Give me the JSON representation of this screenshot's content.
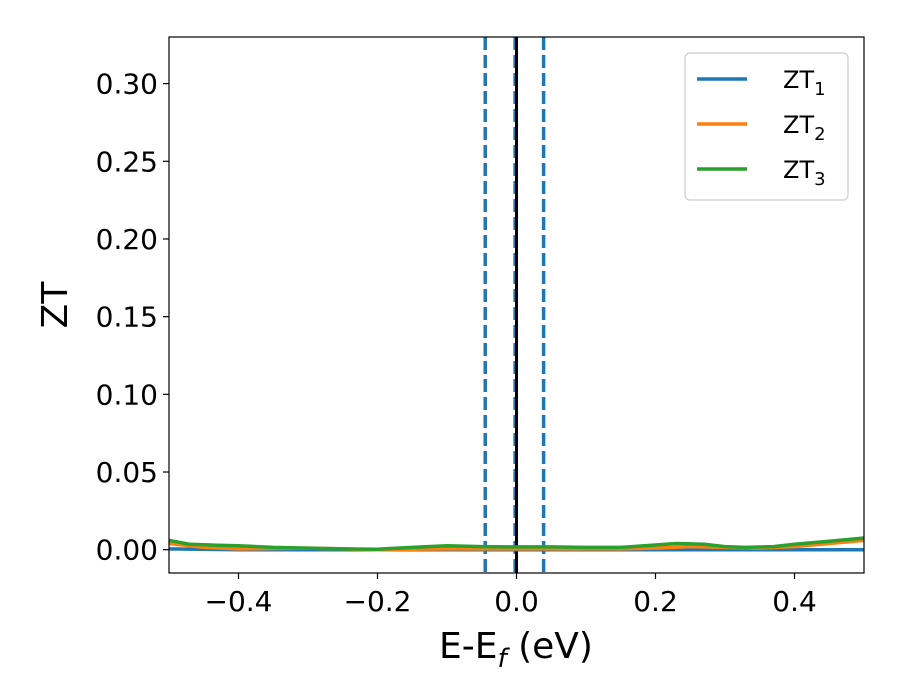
{
  "chart_data": {
    "type": "line",
    "title": "",
    "xlabel": "E-E",
    "xlabel_sub": "f",
    "xlabel_unit": " (eV)",
    "ylabel": "ZT",
    "xlim": [
      -0.5,
      0.5
    ],
    "ylim": [
      -0.015,
      0.33
    ],
    "grid": false,
    "legend_position": "top-right",
    "x_ticks": [
      {
        "value": -0.4,
        "label": "−0.4"
      },
      {
        "value": -0.2,
        "label": "−0.2"
      },
      {
        "value": 0.0,
        "label": "0.0"
      },
      {
        "value": 0.2,
        "label": "0.2"
      },
      {
        "value": 0.4,
        "label": "0.4"
      }
    ],
    "y_ticks": [
      {
        "value": 0.0,
        "label": "0.00"
      },
      {
        "value": 0.05,
        "label": "0.05"
      },
      {
        "value": 0.1,
        "label": "0.10"
      },
      {
        "value": 0.15,
        "label": "0.15"
      },
      {
        "value": 0.2,
        "label": "0.20"
      },
      {
        "value": 0.25,
        "label": "0.25"
      },
      {
        "value": 0.3,
        "label": "0.30"
      }
    ],
    "vertical_lines": [
      {
        "x": -0.045,
        "style": "dashed",
        "color": "#1f77b4"
      },
      {
        "x": -0.002,
        "style": "dashed",
        "color": "#1f77b4"
      },
      {
        "x": 0.039,
        "style": "dashed",
        "color": "#1f77b4"
      },
      {
        "x": 0.0,
        "style": "solid",
        "color": "#000000"
      }
    ],
    "series": [
      {
        "name": "ZT",
        "name_sub": "1",
        "color": "#1f77b4",
        "x": [
          -0.5,
          -0.4,
          -0.3,
          -0.2,
          -0.1,
          0.0,
          0.1,
          0.2,
          0.3,
          0.4,
          0.5
        ],
        "y": [
          0.0005,
          0.0,
          0.0,
          0.0,
          0.0,
          0.0,
          0.0,
          0.0,
          0.0,
          0.0,
          0.0
        ]
      },
      {
        "name": "ZT",
        "name_sub": "2",
        "color": "#ff7f0e",
        "x": [
          -0.5,
          -0.45,
          -0.4,
          -0.35,
          -0.3,
          -0.25,
          -0.2,
          -0.15,
          -0.1,
          -0.05,
          0.0,
          0.05,
          0.1,
          0.15,
          0.2,
          0.25,
          0.3,
          0.35,
          0.4,
          0.45,
          0.5
        ],
        "y": [
          0.004,
          0.0015,
          0.0005,
          0.0008,
          0.001,
          0.0005,
          0.0,
          0.0003,
          0.0005,
          0.0005,
          0.0005,
          0.0005,
          0.0005,
          0.0005,
          0.001,
          0.002,
          0.0015,
          0.001,
          0.002,
          0.004,
          0.006
        ]
      },
      {
        "name": "ZT",
        "name_sub": "3",
        "color": "#2ca02c",
        "x": [
          -0.5,
          -0.47,
          -0.43,
          -0.4,
          -0.35,
          -0.3,
          -0.25,
          -0.2,
          -0.15,
          -0.1,
          -0.05,
          0.0,
          0.05,
          0.1,
          0.15,
          0.2,
          0.23,
          0.27,
          0.3,
          0.33,
          0.37,
          0.4,
          0.45,
          0.5
        ],
        "y": [
          0.006,
          0.0035,
          0.0028,
          0.0025,
          0.0015,
          0.001,
          0.0005,
          0.0003,
          0.0015,
          0.0025,
          0.002,
          0.0018,
          0.0018,
          0.0015,
          0.0015,
          0.003,
          0.004,
          0.0035,
          0.002,
          0.0015,
          0.002,
          0.0035,
          0.0055,
          0.0075
        ]
      }
    ]
  }
}
